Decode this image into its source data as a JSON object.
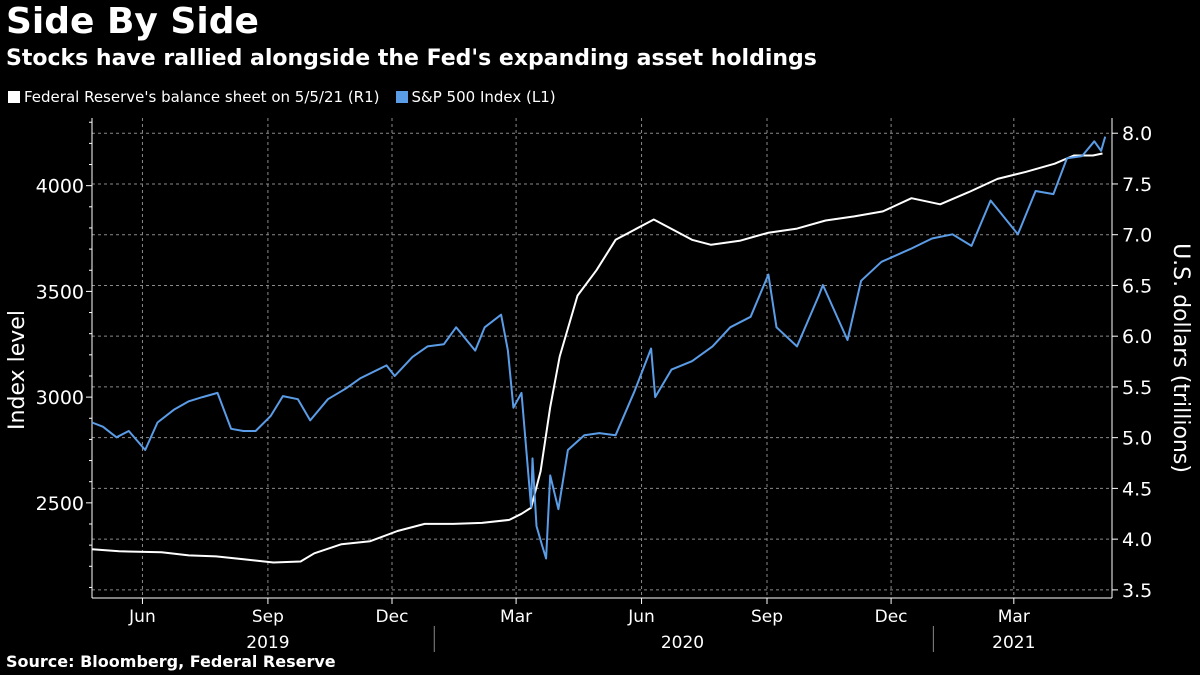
{
  "title": "Side By Side",
  "subtitle": "Stocks have rallied alongside the Fed's expanding asset holdings",
  "source": "Source: Bloomberg, Federal Reserve",
  "colors": {
    "fed": "#ffffff",
    "spx": "#5b9ce6",
    "grid": "#8a8a8a",
    "background": "#000000"
  },
  "chart_data": {
    "type": "line",
    "x_range": [
      "2019-04-25",
      "2021-05-12"
    ],
    "left_axis": {
      "label": "Index level",
      "range": [
        2050,
        4320
      ],
      "ticks": [
        2500,
        3000,
        3500,
        4000
      ]
    },
    "right_axis": {
      "label": "U.S. dollars (trillions)",
      "range": [
        3.42,
        8.15
      ],
      "ticks": [
        3.5,
        4.0,
        4.5,
        5.0,
        5.5,
        6.0,
        6.5,
        7.0,
        7.5,
        8.0
      ]
    },
    "x_ticks": [
      {
        "date": "2019-06-01",
        "label": "Jun"
      },
      {
        "date": "2019-09-01",
        "label": "Sep"
      },
      {
        "date": "2019-12-01",
        "label": "Dec"
      },
      {
        "date": "2020-03-01",
        "label": "Mar"
      },
      {
        "date": "2020-06-01",
        "label": "Jun"
      },
      {
        "date": "2020-09-01",
        "label": "Sep"
      },
      {
        "date": "2020-12-01",
        "label": "Dec"
      },
      {
        "date": "2021-03-01",
        "label": "Mar"
      }
    ],
    "years": [
      {
        "label": "2019",
        "center": "2019-09-01"
      },
      {
        "label": "2020",
        "center": "2020-07-01"
      },
      {
        "label": "2021",
        "center": "2021-03-01"
      }
    ],
    "year_dividers": [
      "2020-01-01",
      "2021-01-01"
    ],
    "legend_position": "top-left",
    "grid": true,
    "series": [
      {
        "name": "Federal Reserve's balance sheet on 5/5/21 (R1)",
        "axis": "right",
        "points": [
          [
            "2019-04-25",
            3.9
          ],
          [
            "2019-05-15",
            3.88
          ],
          [
            "2019-06-15",
            3.87
          ],
          [
            "2019-07-05",
            3.84
          ],
          [
            "2019-07-25",
            3.83
          ],
          [
            "2019-08-15",
            3.8
          ],
          [
            "2019-09-05",
            3.77
          ],
          [
            "2019-09-25",
            3.78
          ],
          [
            "2019-10-05",
            3.86
          ],
          [
            "2019-10-25",
            3.95
          ],
          [
            "2019-11-15",
            3.98
          ],
          [
            "2019-12-05",
            4.08
          ],
          [
            "2019-12-25",
            4.15
          ],
          [
            "2020-01-15",
            4.15
          ],
          [
            "2020-02-05",
            4.16
          ],
          [
            "2020-02-25",
            4.19
          ],
          [
            "2020-03-05",
            4.25
          ],
          [
            "2020-03-12",
            4.31
          ],
          [
            "2020-03-19",
            4.67
          ],
          [
            "2020-03-26",
            5.3
          ],
          [
            "2020-04-02",
            5.8
          ],
          [
            "2020-04-15",
            6.4
          ],
          [
            "2020-04-29",
            6.65
          ],
          [
            "2020-05-13",
            6.95
          ],
          [
            "2020-05-27",
            7.05
          ],
          [
            "2020-06-10",
            7.15
          ],
          [
            "2020-06-24",
            7.05
          ],
          [
            "2020-07-08",
            6.95
          ],
          [
            "2020-07-22",
            6.9
          ],
          [
            "2020-08-12",
            6.94
          ],
          [
            "2020-09-02",
            7.02
          ],
          [
            "2020-09-23",
            7.06
          ],
          [
            "2020-10-14",
            7.14
          ],
          [
            "2020-11-04",
            7.18
          ],
          [
            "2020-11-25",
            7.23
          ],
          [
            "2020-12-16",
            7.36
          ],
          [
            "2021-01-06",
            7.3
          ],
          [
            "2021-01-27",
            7.42
          ],
          [
            "2021-02-17",
            7.55
          ],
          [
            "2021-03-10",
            7.62
          ],
          [
            "2021-03-31",
            7.7
          ],
          [
            "2021-04-14",
            7.78
          ],
          [
            "2021-04-28",
            7.78
          ],
          [
            "2021-05-05",
            7.8
          ]
        ]
      },
      {
        "name": "S&P 500 Index (L1)",
        "axis": "left",
        "points": [
          [
            "2019-04-25",
            2880
          ],
          [
            "2019-05-03",
            2860
          ],
          [
            "2019-05-13",
            2810
          ],
          [
            "2019-05-22",
            2840
          ],
          [
            "2019-06-03",
            2750
          ],
          [
            "2019-06-12",
            2880
          ],
          [
            "2019-06-24",
            2940
          ],
          [
            "2019-07-05",
            2980
          ],
          [
            "2019-07-15",
            3000
          ],
          [
            "2019-07-26",
            3020
          ],
          [
            "2019-08-05",
            2850
          ],
          [
            "2019-08-14",
            2840
          ],
          [
            "2019-08-23",
            2840
          ],
          [
            "2019-09-03",
            2910
          ],
          [
            "2019-09-12",
            3005
          ],
          [
            "2019-09-23",
            2990
          ],
          [
            "2019-10-02",
            2890
          ],
          [
            "2019-10-15",
            2990
          ],
          [
            "2019-10-28",
            3040
          ],
          [
            "2019-11-08",
            3090
          ],
          [
            "2019-11-27",
            3150
          ],
          [
            "2019-12-03",
            3100
          ],
          [
            "2019-12-16",
            3190
          ],
          [
            "2019-12-27",
            3240
          ],
          [
            "2020-01-08",
            3250
          ],
          [
            "2020-01-17",
            3330
          ],
          [
            "2020-01-31",
            3220
          ],
          [
            "2020-02-07",
            3330
          ],
          [
            "2020-02-19",
            3390
          ],
          [
            "2020-02-24",
            3220
          ],
          [
            "2020-02-28",
            2950
          ],
          [
            "2020-03-05",
            3020
          ],
          [
            "2020-03-12",
            2480
          ],
          [
            "2020-03-13",
            2710
          ],
          [
            "2020-03-16",
            2390
          ],
          [
            "2020-03-20",
            2300
          ],
          [
            "2020-03-23",
            2237
          ],
          [
            "2020-03-26",
            2630
          ],
          [
            "2020-04-01",
            2470
          ],
          [
            "2020-04-08",
            2750
          ],
          [
            "2020-04-20",
            2820
          ],
          [
            "2020-05-01",
            2830
          ],
          [
            "2020-05-13",
            2820
          ],
          [
            "2020-05-27",
            3030
          ],
          [
            "2020-06-08",
            3230
          ],
          [
            "2020-06-11",
            3000
          ],
          [
            "2020-06-23",
            3130
          ],
          [
            "2020-07-08",
            3170
          ],
          [
            "2020-07-23",
            3240
          ],
          [
            "2020-08-05",
            3330
          ],
          [
            "2020-08-20",
            3380
          ],
          [
            "2020-09-02",
            3580
          ],
          [
            "2020-09-08",
            3330
          ],
          [
            "2020-09-23",
            3240
          ],
          [
            "2020-10-09",
            3480
          ],
          [
            "2020-10-12",
            3530
          ],
          [
            "2020-10-30",
            3270
          ],
          [
            "2020-11-09",
            3550
          ],
          [
            "2020-11-24",
            3640
          ],
          [
            "2020-12-15",
            3700
          ],
          [
            "2020-12-31",
            3750
          ],
          [
            "2021-01-15",
            3770
          ],
          [
            "2021-01-29",
            3715
          ],
          [
            "2021-02-12",
            3930
          ],
          [
            "2021-03-04",
            3770
          ],
          [
            "2021-03-17",
            3975
          ],
          [
            "2021-03-30",
            3960
          ],
          [
            "2021-04-09",
            4130
          ],
          [
            "2021-04-20",
            4140
          ],
          [
            "2021-04-29",
            4210
          ],
          [
            "2021-05-04",
            4165
          ],
          [
            "2021-05-07",
            4232
          ]
        ]
      }
    ]
  }
}
